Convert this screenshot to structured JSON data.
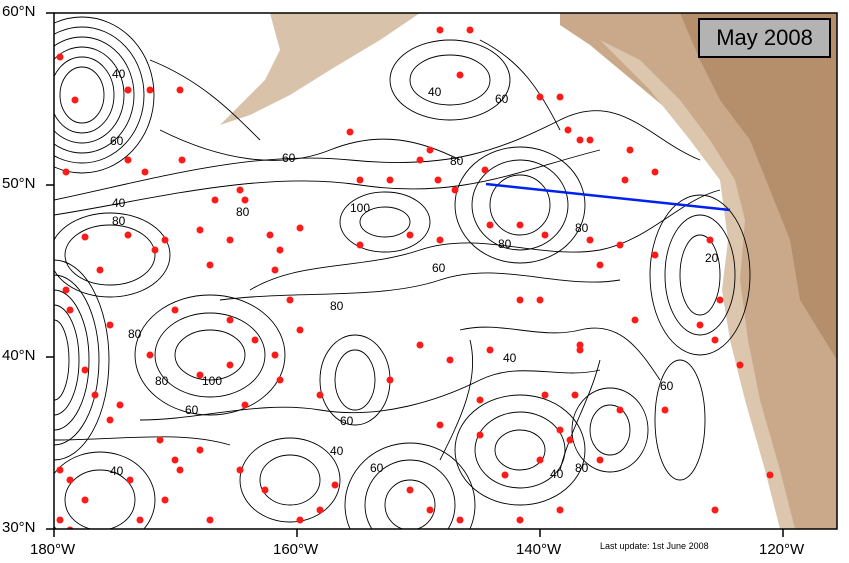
{
  "title_box": "May 2008",
  "last_update": "Last update: 1st June 2008",
  "axes": {
    "lat_labels": [
      "60°N",
      "50°N",
      "40°N",
      "30°N"
    ],
    "lon_labels": [
      "180°W",
      "160°W",
      "140°W",
      "120°W"
    ]
  },
  "contour_labels": [
    "40",
    "60",
    "80",
    "100",
    "20"
  ],
  "colors": {
    "ocean": "#ffffff",
    "land": "#c9a98a",
    "land_dark": "#b58e6c",
    "land_light": "#ddc6ae",
    "contour": "#000000",
    "floats": "#ff1a1a",
    "transect": "#0022ee"
  },
  "chart_data": {
    "type": "map",
    "lon_range": [
      -180,
      -115
    ],
    "lat_range": [
      30,
      60
    ],
    "transect": {
      "start": [
        -145,
        50
      ],
      "end": [
        -126,
        48.5
      ]
    }
  }
}
